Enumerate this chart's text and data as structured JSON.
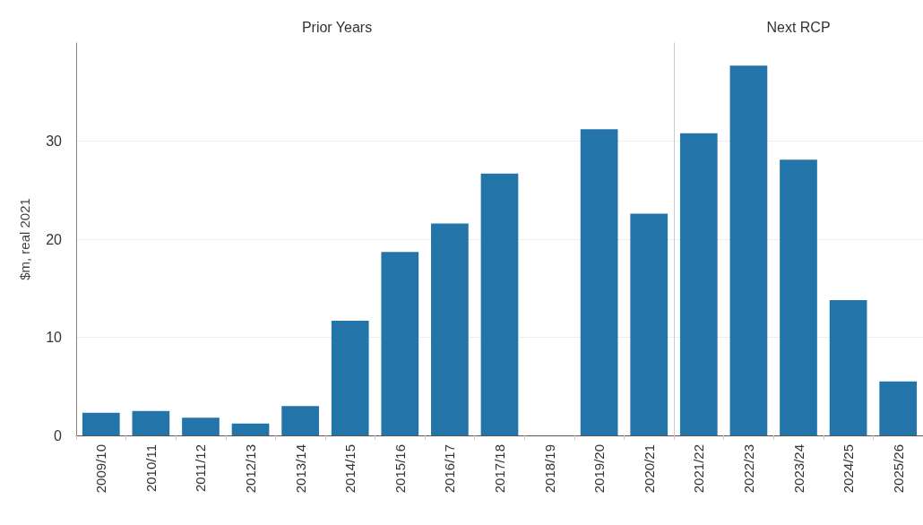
{
  "chart_data": [
    {
      "type": "bar",
      "title": "Prior Years",
      "ylabel": "$m, real 2021",
      "categories": [
        "2009/10",
        "2010/11",
        "2011/12",
        "2012/13",
        "2013/14",
        "2014/15",
        "2015/16",
        "2016/17",
        "2017/18",
        "2018/19",
        "2019/20",
        "2020/21"
      ],
      "values": [
        2.3,
        2.5,
        1.8,
        1.2,
        3.0,
        11.7,
        18.7,
        21.6,
        26.7,
        0,
        31.2,
        22.6
      ],
      "color": "#2274a9",
      "ylim": [
        0,
        40
      ],
      "yticks": [
        0,
        10,
        20,
        30
      ],
      "grid": "y"
    },
    {
      "type": "bar",
      "title": "Next RCP",
      "categories": [
        "2021/22",
        "2022/23",
        "2023/24",
        "2024/25",
        "2025/26"
      ],
      "values": [
        30.8,
        37.7,
        28.1,
        13.8,
        5.5
      ],
      "color": "#2274a9",
      "ylim": [
        0,
        40
      ],
      "yticks": [
        0,
        10,
        20,
        30
      ],
      "grid": "y",
      "tick_labels": "x"
    }
  ]
}
